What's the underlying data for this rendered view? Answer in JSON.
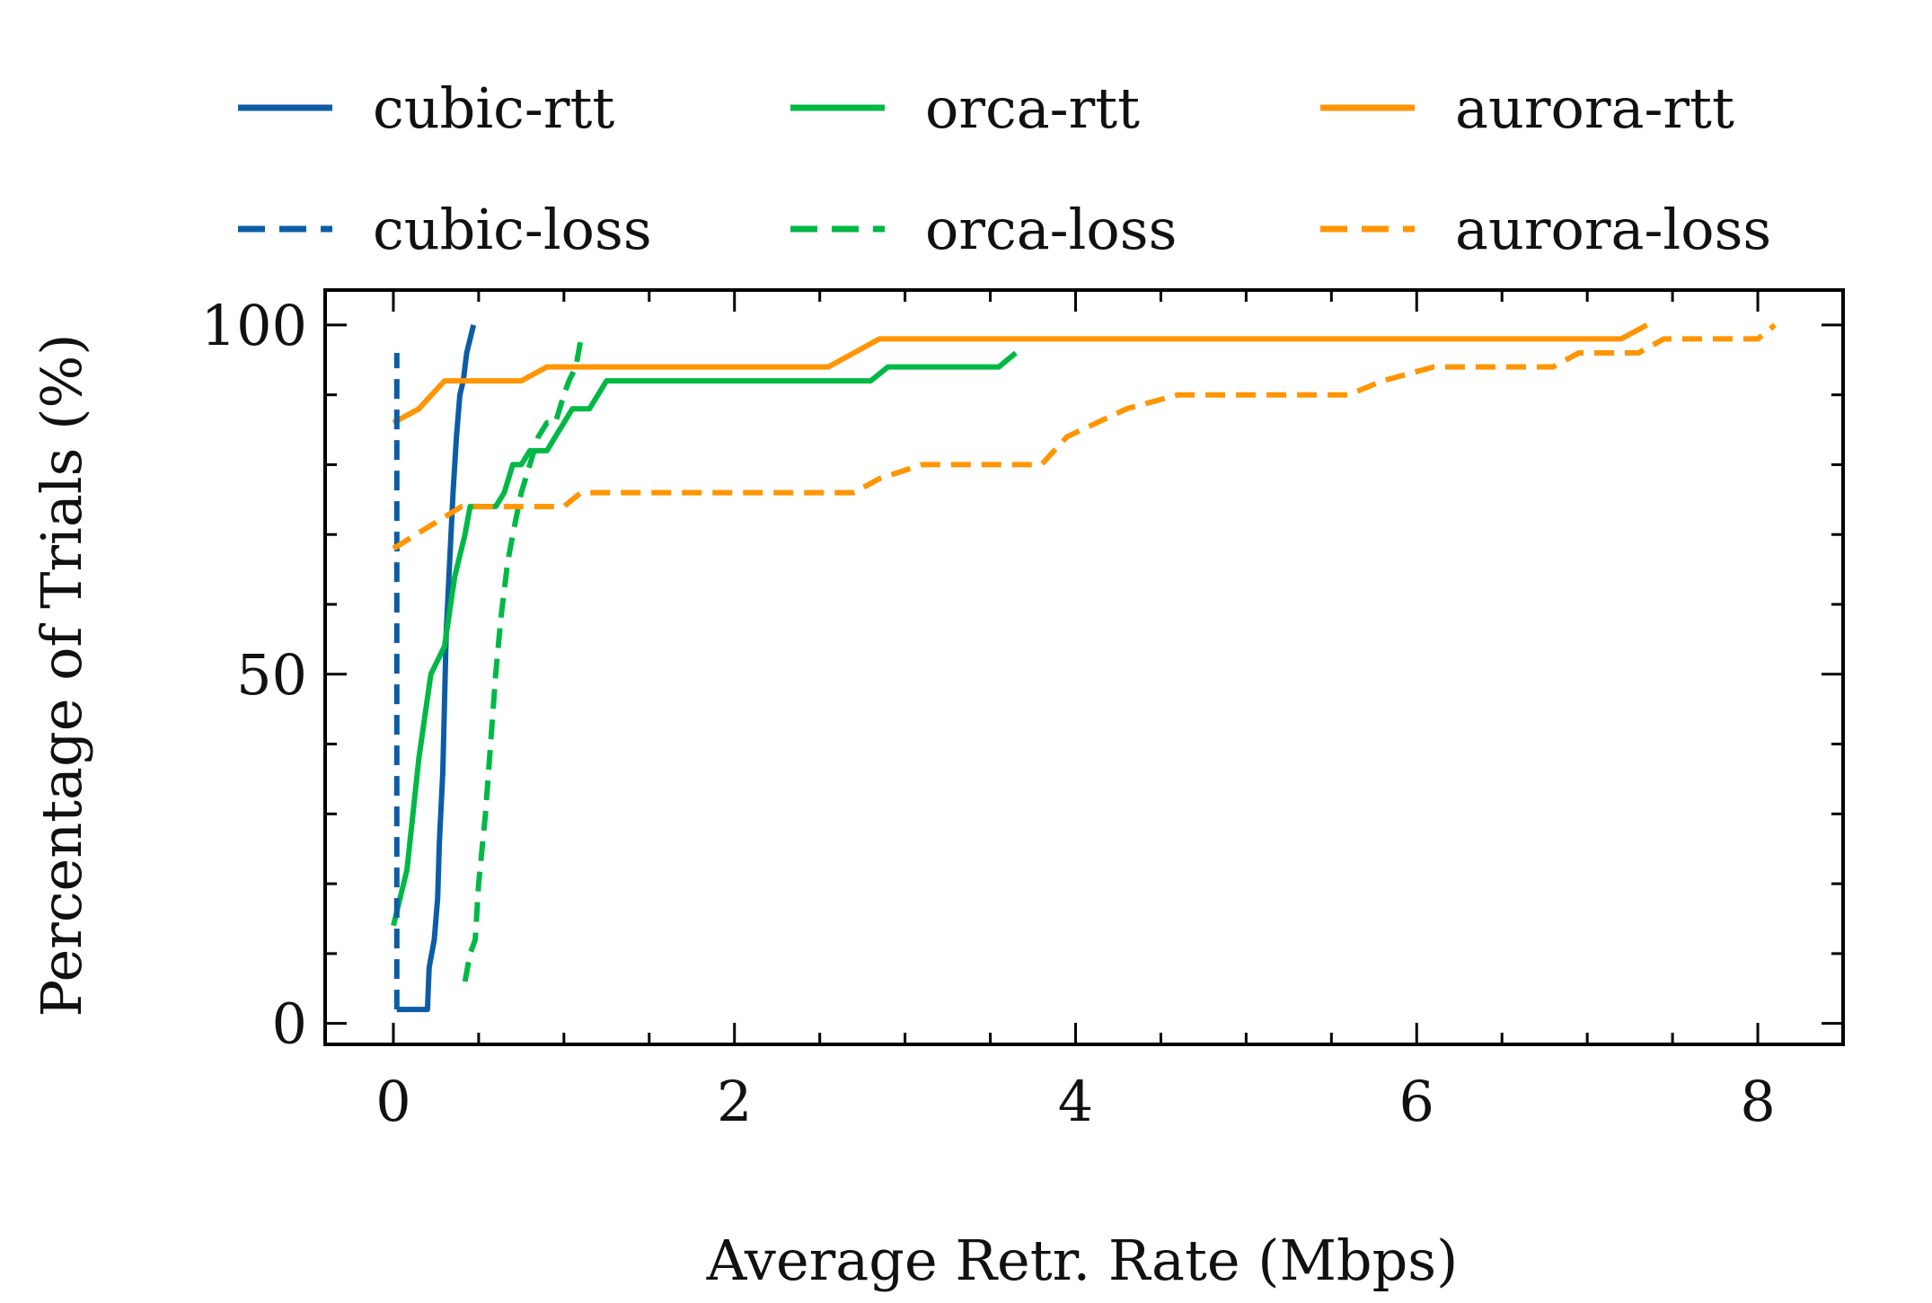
{
  "chart_data": {
    "type": "line",
    "title": "",
    "xlabel": "Average Retr. Rate (Mbps)",
    "ylabel": "Percentage of Trials (%)",
    "xlim": [
      -0.4,
      8.5
    ],
    "ylim": [
      -3,
      105
    ],
    "xticks": [
      0,
      2,
      4,
      6,
      8
    ],
    "yticks": [
      0,
      50,
      100
    ],
    "grid": false,
    "legend_position": "top (above plot), 3 columns",
    "series": [
      {
        "name": "cubic-rtt",
        "color": "#0C5DA5",
        "dash": "solid",
        "points": [
          [
            0.02,
            2
          ],
          [
            0.2,
            2
          ],
          [
            0.21,
            8
          ],
          [
            0.24,
            12
          ],
          [
            0.26,
            18
          ],
          [
            0.27,
            26
          ],
          [
            0.29,
            36
          ],
          [
            0.3,
            46
          ],
          [
            0.31,
            56
          ],
          [
            0.33,
            66
          ],
          [
            0.35,
            76
          ],
          [
            0.37,
            84
          ],
          [
            0.39,
            90
          ],
          [
            0.41,
            92
          ],
          [
            0.43,
            96
          ],
          [
            0.45,
            98
          ],
          [
            0.47,
            100
          ]
        ]
      },
      {
        "name": "orca-rtt",
        "color": "#00B945",
        "dash": "solid",
        "points": [
          [
            0,
            14
          ],
          [
            0.08,
            22
          ],
          [
            0.15,
            38
          ],
          [
            0.22,
            50
          ],
          [
            0.3,
            54
          ],
          [
            0.36,
            64
          ],
          [
            0.42,
            70
          ],
          [
            0.45,
            74
          ],
          [
            0.6,
            74
          ],
          [
            0.65,
            76
          ],
          [
            0.7,
            80
          ],
          [
            0.75,
            80
          ],
          [
            0.8,
            82
          ],
          [
            0.85,
            82
          ],
          [
            0.9,
            82
          ],
          [
            0.95,
            84
          ],
          [
            1.0,
            86
          ],
          [
            1.05,
            88
          ],
          [
            1.15,
            88
          ],
          [
            1.25,
            92
          ],
          [
            2.8,
            92
          ],
          [
            2.9,
            94
          ],
          [
            3.55,
            94
          ],
          [
            3.65,
            96
          ]
        ]
      },
      {
        "name": "aurora-rtt",
        "color": "#FF9500",
        "dash": "solid",
        "points": [
          [
            0,
            86
          ],
          [
            0.15,
            88
          ],
          [
            0.3,
            92
          ],
          [
            0.75,
            92
          ],
          [
            0.9,
            94
          ],
          [
            2.55,
            94
          ],
          [
            2.85,
            98
          ],
          [
            7.2,
            98
          ],
          [
            7.35,
            100
          ]
        ]
      },
      {
        "name": "cubic-loss",
        "color": "#0C5DA5",
        "dash": "dashed",
        "points": [
          [
            0.02,
            2
          ],
          [
            0.02,
            96
          ]
        ]
      },
      {
        "name": "orca-loss",
        "color": "#00B945",
        "dash": "dashed",
        "points": [
          [
            0.42,
            6
          ],
          [
            0.45,
            10
          ],
          [
            0.48,
            12
          ],
          [
            0.5,
            20
          ],
          [
            0.54,
            30
          ],
          [
            0.57,
            40
          ],
          [
            0.6,
            50
          ],
          [
            0.63,
            58
          ],
          [
            0.67,
            66
          ],
          [
            0.7,
            70
          ],
          [
            0.75,
            76
          ],
          [
            0.8,
            80
          ],
          [
            0.85,
            84
          ],
          [
            0.9,
            86
          ],
          [
            0.95,
            86
          ],
          [
            1.0,
            90
          ],
          [
            1.03,
            92
          ],
          [
            1.07,
            94
          ],
          [
            1.1,
            98
          ]
        ]
      },
      {
        "name": "aurora-loss",
        "color": "#FF9500",
        "dash": "dashed",
        "points": [
          [
            0,
            68
          ],
          [
            0.4,
            74
          ],
          [
            1.0,
            74
          ],
          [
            1.1,
            76
          ],
          [
            2.7,
            76
          ],
          [
            2.85,
            78
          ],
          [
            3.1,
            80
          ],
          [
            3.8,
            80
          ],
          [
            3.95,
            84
          ],
          [
            4.3,
            88
          ],
          [
            4.6,
            90
          ],
          [
            5.6,
            90
          ],
          [
            5.8,
            92
          ],
          [
            6.1,
            94
          ],
          [
            6.8,
            94
          ],
          [
            6.95,
            96
          ],
          [
            7.3,
            96
          ],
          [
            7.45,
            98
          ],
          [
            8.0,
            98
          ],
          [
            8.1,
            100
          ]
        ]
      }
    ]
  }
}
